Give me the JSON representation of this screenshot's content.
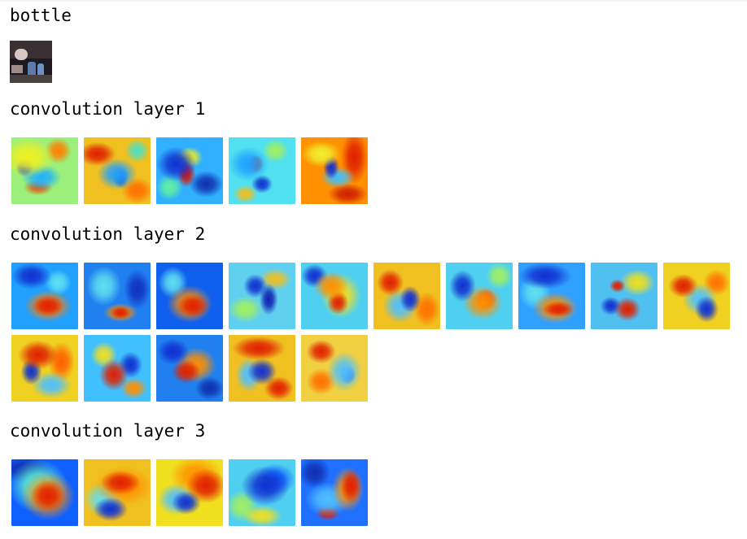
{
  "header": {
    "title": "bottle"
  },
  "input_image": {
    "icon": "bottle-photo-thumbnail"
  },
  "layers": [
    {
      "label": "convolution layer 1",
      "maps": [
        {
          "bg": "#9af07a",
          "blobs": [
            [
              "#f0f020",
              25,
              30,
              40,
              30
            ],
            [
              "#1040e0",
              20,
              45,
              14,
              14
            ],
            [
              "#20b0ff",
              45,
              60,
              30,
              20
            ],
            [
              "#e06010",
              40,
              75,
              22,
              12
            ],
            [
              "#ff8000",
              70,
              20,
              20,
              20
            ]
          ]
        },
        {
          "bg": "#f0c020",
          "blobs": [
            [
              "#e02000",
              20,
              25,
              28,
              18
            ],
            [
              "#20a0ff",
              50,
              55,
              30,
              24
            ],
            [
              "#1030c0",
              55,
              60,
              12,
              16
            ],
            [
              "#ff7000",
              80,
              80,
              24,
              20
            ],
            [
              "#50e0c0",
              80,
              20,
              18,
              18
            ]
          ]
        },
        {
          "bg": "#30b0ff",
          "blobs": [
            [
              "#1030d0",
              30,
              40,
              30,
              26
            ],
            [
              "#e01000",
              45,
              55,
              14,
              20
            ],
            [
              "#f0f020",
              50,
              30,
              20,
              16
            ],
            [
              "#60f0a0",
              20,
              75,
              20,
              20
            ],
            [
              "#1030b0",
              75,
              70,
              26,
              20
            ]
          ]
        },
        {
          "bg": "#50e0f0",
          "blobs": [
            [
              "#20a0ff",
              30,
              40,
              30,
              26
            ],
            [
              "#e02000",
              40,
              40,
              12,
              14
            ],
            [
              "#1030d0",
              50,
              70,
              16,
              14
            ],
            [
              "#a0f060",
              70,
              20,
              20,
              18
            ],
            [
              "#f0c020",
              25,
              85,
              18,
              14
            ]
          ]
        },
        {
          "bg": "#ff9000",
          "blobs": [
            [
              "#f0f030",
              30,
              25,
              30,
              20
            ],
            [
              "#1030d0",
              45,
              45,
              12,
              18
            ],
            [
              "#40c0ff",
              55,
              60,
              26,
              16
            ],
            [
              "#e02000",
              80,
              30,
              20,
              40
            ],
            [
              "#d02000",
              70,
              85,
              30,
              16
            ]
          ]
        }
      ]
    },
    {
      "label": "convolution layer 2",
      "maps": [
        {
          "bg": "#20a0ff",
          "blobs": [
            [
              "#e02000",
              55,
              65,
              24,
              16
            ],
            [
              "#ff8000",
              55,
              65,
              36,
              24
            ],
            [
              "#1030d0",
              30,
              20,
              30,
              20
            ],
            [
              "#60e0f0",
              70,
              30,
              20,
              20
            ]
          ]
        },
        {
          "bg": "#2080f0",
          "blobs": [
            [
              "#e02000",
              55,
              75,
              16,
              10
            ],
            [
              "#ff9000",
              55,
              75,
              26,
              14
            ],
            [
              "#60e0f0",
              30,
              35,
              26,
              30
            ],
            [
              "#1030c0",
              80,
              40,
              20,
              30
            ]
          ]
        },
        {
          "bg": "#1060f0",
          "blobs": [
            [
              "#e02000",
              55,
              65,
              24,
              18
            ],
            [
              "#ff9000",
              50,
              62,
              34,
              28
            ],
            [
              "#60e0f0",
              25,
              30,
              22,
              24
            ]
          ]
        },
        {
          "bg": "#60d0f0",
          "blobs": [
            [
              "#1030d0",
              40,
              35,
              18,
              18
            ],
            [
              "#1020b0",
              60,
              55,
              14,
              24
            ],
            [
              "#f0c020",
              70,
              25,
              24,
              16
            ],
            [
              "#a0f060",
              25,
              70,
              26,
              20
            ]
          ]
        },
        {
          "bg": "#50d0f0",
          "blobs": [
            [
              "#ff9000",
              45,
              35,
              26,
              22
            ],
            [
              "#e02000",
              55,
              60,
              16,
              18
            ],
            [
              "#f0e020",
              60,
              50,
              30,
              34
            ],
            [
              "#1030d0",
              20,
              20,
              20,
              18
            ]
          ]
        },
        {
          "bg": "#f0c020",
          "blobs": [
            [
              "#e02000",
              25,
              30,
              20,
              20
            ],
            [
              "#1030d0",
              55,
              55,
              16,
              20
            ],
            [
              "#50c0ff",
              40,
              65,
              26,
              26
            ],
            [
              "#ff7000",
              80,
              70,
              20,
              26
            ]
          ]
        },
        {
          "bg": "#50d0f0",
          "blobs": [
            [
              "#1030d0",
              25,
              35,
              20,
              24
            ],
            [
              "#ff9000",
              55,
              60,
              30,
              26
            ],
            [
              "#e02000",
              60,
              55,
              16,
              16
            ],
            [
              "#a0f060",
              80,
              20,
              20,
              20
            ]
          ]
        },
        {
          "bg": "#30a0ff",
          "blobs": [
            [
              "#1030d0",
              40,
              20,
              40,
              20
            ],
            [
              "#e02000",
              60,
              70,
              24,
              12
            ],
            [
              "#ff9000",
              55,
              68,
              34,
              24
            ],
            [
              "#60e0f0",
              25,
              45,
              24,
              26
            ]
          ]
        },
        {
          "bg": "#50c0f0",
          "blobs": [
            [
              "#e02000",
              40,
              35,
              12,
              10
            ],
            [
              "#e02000",
              55,
              70,
              20,
              18
            ],
            [
              "#1030d0",
              30,
              65,
              16,
              14
            ],
            [
              "#f0e020",
              70,
              30,
              26,
              20
            ]
          ]
        },
        {
          "bg": "#f0d020",
          "blobs": [
            [
              "#e02000",
              30,
              35,
              22,
              18
            ],
            [
              "#1030d0",
              65,
              70,
              18,
              20
            ],
            [
              "#50c0ff",
              55,
              55,
              26,
              24
            ],
            [
              "#ff7000",
              80,
              30,
              20,
              20
            ]
          ]
        },
        {
          "bg": "#f0d020",
          "blobs": [
            [
              "#e02000",
              40,
              30,
              30,
              22
            ],
            [
              "#1030d0",
              30,
              55,
              16,
              20
            ],
            [
              "#50c0ff",
              60,
              75,
              30,
              20
            ],
            [
              "#ff6000",
              75,
              40,
              20,
              30
            ]
          ]
        },
        {
          "bg": "#40c0ff",
          "blobs": [
            [
              "#e02000",
              45,
              60,
              22,
              24
            ],
            [
              "#1030d0",
              70,
              45,
              18,
              20
            ],
            [
              "#f0e020",
              30,
              30,
              20,
              20
            ],
            [
              "#ff9000",
              75,
              80,
              20,
              16
            ]
          ]
        },
        {
          "bg": "#2080f0",
          "blobs": [
            [
              "#e02000",
              45,
              55,
              22,
              18
            ],
            [
              "#1030d0",
              25,
              25,
              24,
              20
            ],
            [
              "#ff9000",
              60,
              45,
              30,
              26
            ],
            [
              "#1030b0",
              80,
              80,
              22,
              18
            ]
          ]
        },
        {
          "bg": "#f0c020",
          "blobs": [
            [
              "#e02000",
              45,
              20,
              40,
              18
            ],
            [
              "#1030d0",
              50,
              55,
              22,
              20
            ],
            [
              "#50c0ff",
              30,
              60,
              20,
              26
            ],
            [
              "#e02000",
              75,
              80,
              22,
              18
            ]
          ]
        },
        {
          "bg": "#f0d040",
          "blobs": [
            [
              "#e02000",
              30,
              25,
              22,
              18
            ],
            [
              "#50c0ff",
              65,
              55,
              26,
              30
            ],
            [
              "#1030d0",
              70,
              60,
              12,
              14
            ],
            [
              "#ff7000",
              30,
              70,
              22,
              20
            ]
          ]
        }
      ]
    },
    {
      "label": "convolution layer 3",
      "maps": [
        {
          "bg": "#1060ff",
          "blobs": [
            [
              "#e02000",
              55,
              55,
              26,
              24
            ],
            [
              "#ff9000",
              55,
              55,
              40,
              36
            ],
            [
              "#60f0d0",
              40,
              40,
              44,
              40
            ],
            [
              "#1030b0",
              20,
              15,
              40,
              20
            ]
          ]
        },
        {
          "bg": "#f0c020",
          "blobs": [
            [
              "#1030d0",
              40,
              75,
              26,
              18
            ],
            [
              "#e02000",
              55,
              35,
              30,
              18
            ],
            [
              "#ff9000",
              60,
              40,
              44,
              30
            ],
            [
              "#60e0f0",
              30,
              60,
              30,
              26
            ]
          ]
        },
        {
          "bg": "#f0e020",
          "blobs": [
            [
              "#1030d0",
              45,
              65,
              22,
              18
            ],
            [
              "#e02000",
              75,
              40,
              30,
              26
            ],
            [
              "#50c0ff",
              30,
              60,
              28,
              24
            ],
            [
              "#ff9000",
              60,
              25,
              40,
              30
            ]
          ]
        },
        {
          "bg": "#50d0f0",
          "blobs": [
            [
              "#1030d0",
              55,
              40,
              36,
              30
            ],
            [
              "#1060ff",
              70,
              30,
              30,
              24
            ],
            [
              "#f0e020",
              50,
              85,
              30,
              16
            ],
            [
              "#a0f060",
              20,
              70,
              24,
              24
            ]
          ]
        },
        {
          "bg": "#2070ff",
          "blobs": [
            [
              "#e02000",
              75,
              40,
              16,
              26
            ],
            [
              "#ff9000",
              70,
              45,
              24,
              34
            ],
            [
              "#50c0ff",
              40,
              60,
              34,
              26
            ],
            [
              "#e02000",
              40,
              80,
              18,
              12
            ],
            [
              "#1030b0",
              20,
              20,
              24,
              24
            ]
          ]
        }
      ]
    }
  ]
}
